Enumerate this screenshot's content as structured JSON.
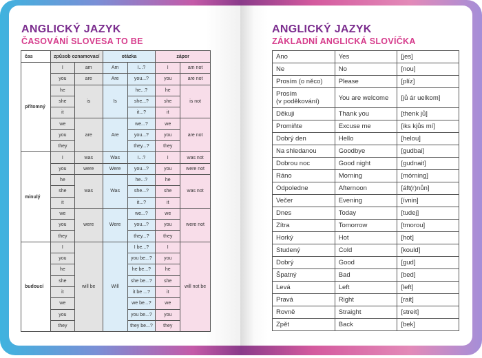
{
  "left_page": {
    "title": "ANGLICKÝ JAZYK",
    "subtitle": "ČASOVÁNÍ SLOVESA TO BE",
    "headers": {
      "tense": "čas",
      "indicative": "způsob oznamovací",
      "question": "otázka",
      "negation": "zápor"
    },
    "tenses": [
      {
        "name": "přítomný",
        "groups": [
          {
            "verb": "am",
            "question_verb": "Am",
            "negation": "am not",
            "persons": [
              {
                "pronoun": "I",
                "question": "I...?"
              }
            ]
          },
          {
            "verb": "are",
            "question_verb": "Are",
            "negation": "are not",
            "persons": [
              {
                "pronoun": "you",
                "question": "you...?"
              }
            ]
          },
          {
            "verb": "is",
            "question_verb": "Is",
            "negation": "is not",
            "persons": [
              {
                "pronoun": "he",
                "question": "he...?"
              },
              {
                "pronoun": "she",
                "question": "she...?"
              },
              {
                "pronoun": "it",
                "question": "it...?"
              }
            ]
          },
          {
            "verb": "are",
            "question_verb": "Are",
            "negation": "are not",
            "persons": [
              {
                "pronoun": "we",
                "question": "we...?"
              },
              {
                "pronoun": "you",
                "question": "you...?"
              },
              {
                "pronoun": "they",
                "question": "they...?"
              }
            ]
          }
        ]
      },
      {
        "name": "minulý",
        "groups": [
          {
            "verb": "was",
            "question_verb": "Was",
            "negation": "was not",
            "persons": [
              {
                "pronoun": "I",
                "question": "I...?"
              }
            ]
          },
          {
            "verb": "were",
            "question_verb": "Were",
            "negation": "were not",
            "persons": [
              {
                "pronoun": "you",
                "question": "you...?"
              }
            ]
          },
          {
            "verb": "was",
            "question_verb": "Was",
            "negation": "was not",
            "persons": [
              {
                "pronoun": "he",
                "question": "he...?"
              },
              {
                "pronoun": "she",
                "question": "she...?"
              },
              {
                "pronoun": "it",
                "question": "it...?"
              }
            ]
          },
          {
            "verb": "were",
            "question_verb": "Were",
            "negation": "were not",
            "persons": [
              {
                "pronoun": "we",
                "question": "we...?"
              },
              {
                "pronoun": "you",
                "question": "you...?"
              },
              {
                "pronoun": "they",
                "question": "they...?"
              }
            ]
          }
        ]
      },
      {
        "name": "budoucí",
        "groups": [
          {
            "verb": "will be",
            "question_verb": "Will",
            "negation": "will not be",
            "persons": [
              {
                "pronoun": "I",
                "question": "I be...?"
              },
              {
                "pronoun": "you",
                "question": "you be...?"
              },
              {
                "pronoun": "he",
                "question": "he be...?"
              },
              {
                "pronoun": "she",
                "question": "she be...?"
              },
              {
                "pronoun": "it",
                "question": "it be ...?"
              },
              {
                "pronoun": "we",
                "question": "we be...?"
              },
              {
                "pronoun": "you",
                "question": "you be...?"
              },
              {
                "pronoun": "they",
                "question": "they be...?"
              }
            ]
          }
        ]
      }
    ]
  },
  "right_page": {
    "title": "ANGLICKÝ JAZYK",
    "subtitle": "ZÁKLADNÍ ANGLICKÁ SLOVÍČKA",
    "rows": [
      [
        "Ano",
        "Yes",
        "[jes]"
      ],
      [
        "Ne",
        "No",
        "[nou]"
      ],
      [
        "Prosím (o něco)",
        "Please",
        "[plíz]"
      ],
      [
        "Prosím\n(v poděkování)",
        "You are welcome",
        "[jů ár uelkom]"
      ],
      [
        "Děkuji",
        "Thank you",
        "[thenk jů]"
      ],
      [
        "Promiňte",
        "Excuse me",
        "[iks kjůs mí]"
      ],
      [
        "Dobrý den",
        "Hello",
        "[helou]"
      ],
      [
        "Na shledanou",
        "Goodbye",
        "[gudbai]"
      ],
      [
        "Dobrou noc",
        "Good night",
        "[gudnait]"
      ],
      [
        "Ráno",
        "Morning",
        "[mórning]"
      ],
      [
        "Odpoledne",
        "Afternoon",
        "[áft(r)nůn]"
      ],
      [
        "Večer",
        "Evening",
        "[ívnin]"
      ],
      [
        "Dnes",
        "Today",
        "[tudej]"
      ],
      [
        "Zítra",
        "Tomorrow",
        "[tmorou]"
      ],
      [
        "Horký",
        "Hot",
        "[hot]"
      ],
      [
        "Studený",
        "Cold",
        "[kould]"
      ],
      [
        "Dobrý",
        "Good",
        "[gud]"
      ],
      [
        "Špatný",
        "Bad",
        "[bed]"
      ],
      [
        "Levá",
        "Left",
        "[left]"
      ],
      [
        "Pravá",
        "Right",
        "[rait]"
      ],
      [
        "Rovně",
        "Straight",
        "[streit]"
      ],
      [
        "Zpět",
        "Back",
        "[bek]"
      ]
    ]
  }
}
